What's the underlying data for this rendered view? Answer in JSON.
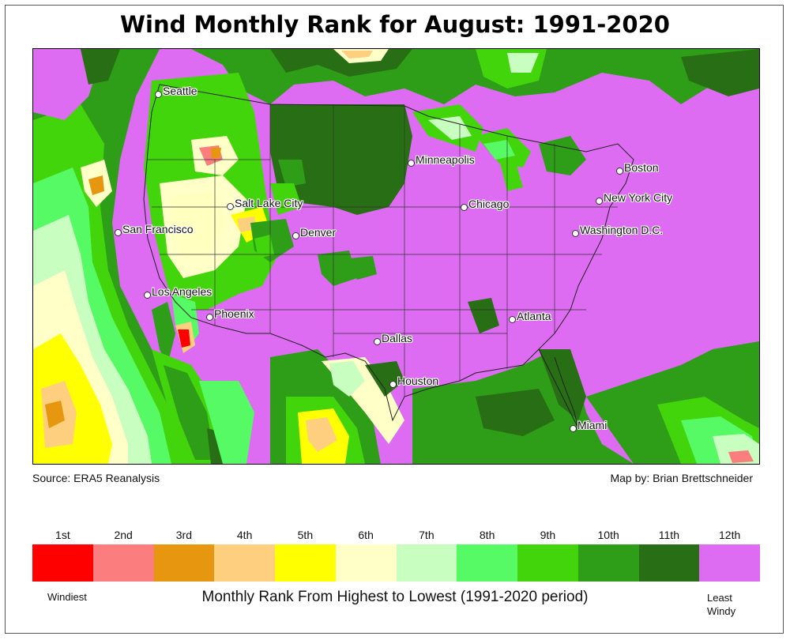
{
  "title": "Wind Monthly Rank for August: 1991-2020",
  "source": "Source: ERA5 Reanalysis",
  "credit": "Map by: Brian Brettschneider",
  "cities": [
    {
      "id": "seattle",
      "name": "Seattle"
    },
    {
      "id": "salt-lake-city",
      "name": "Salt Lake City"
    },
    {
      "id": "san-francisco",
      "name": "San Francisco"
    },
    {
      "id": "denver",
      "name": "Denver"
    },
    {
      "id": "los-angeles",
      "name": "Los Angeles"
    },
    {
      "id": "phoenix",
      "name": "Phoenix"
    },
    {
      "id": "minneapolis",
      "name": "Minneapolis"
    },
    {
      "id": "chicago",
      "name": "Chicago"
    },
    {
      "id": "boston",
      "name": "Boston"
    },
    {
      "id": "new-york-city",
      "name": "New York City"
    },
    {
      "id": "washington-dc",
      "name": "Washington D.C."
    },
    {
      "id": "atlanta",
      "name": "Atlanta"
    },
    {
      "id": "dallas",
      "name": "Dallas"
    },
    {
      "id": "houston",
      "name": "Houston"
    },
    {
      "id": "miami",
      "name": "Miami"
    }
  ],
  "legend": {
    "ranks": [
      {
        "label": "1st",
        "color": "#ff0000"
      },
      {
        "label": "2nd",
        "color": "#fb7d7d"
      },
      {
        "label": "3rd",
        "color": "#e6960f"
      },
      {
        "label": "4th",
        "color": "#fdcf7f"
      },
      {
        "label": "5th",
        "color": "#ffff00"
      },
      {
        "label": "6th",
        "color": "#ffffc8"
      },
      {
        "label": "7th",
        "color": "#c8ffc0"
      },
      {
        "label": "8th",
        "color": "#55fa64"
      },
      {
        "label": "9th",
        "color": "#43d50c"
      },
      {
        "label": "10th",
        "color": "#2e9e18"
      },
      {
        "label": "11th",
        "color": "#286e14"
      },
      {
        "label": "12th",
        "color": "#dd6cf2"
      }
    ],
    "low_label": "Windiest",
    "caption": "Monthly Rank From Highest to Lowest (1991-2020 period)",
    "high_label_line1": "Least",
    "high_label_line2": "Windy"
  }
}
